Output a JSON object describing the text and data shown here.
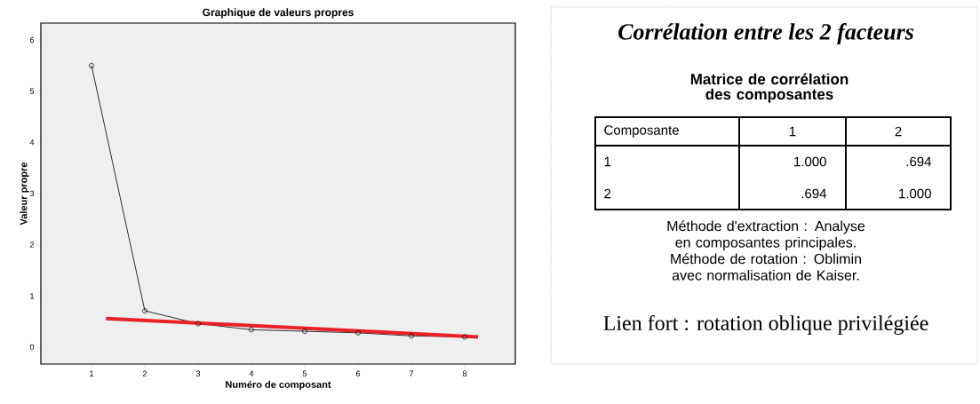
{
  "chart_data": [
    {
      "type": "line",
      "title": "Graphique de valeurs propres",
      "xlabel": "Numéro de composant",
      "ylabel": "Valeur propre",
      "x": [
        1,
        2,
        3,
        4,
        5,
        6,
        7,
        8
      ],
      "marker": "circle",
      "series": [
        {
          "color": "#000000",
          "values": [
            5.5,
            0.71,
            0.46,
            0.34,
            0.31,
            0.28,
            0.22,
            0.2
          ]
        },
        {
          "type": "line",
          "color": "#e8212a",
          "marker": "none",
          "x": [
            1.27,
            8.25
          ],
          "values": [
            0.56,
            0.2
          ]
        }
      ],
      "xlim": [
        0.05,
        8.95
      ],
      "ylim": [
        -0.33,
        6.33
      ],
      "xticks": [
        1,
        2,
        3,
        4,
        5,
        6,
        7,
        8
      ],
      "yticks": [
        0,
        1,
        2,
        3,
        4,
        5,
        6
      ]
    },
    {
      "type": "other",
      "title": "Corrélation entre les 2 facteurs",
      "subtitle": "Matrice de corrélation des composantes",
      "annotations": [
        "Composante",
        "1",
        "2",
        "1",
        "1.000",
        ".694",
        "2",
        ".694",
        "1.000",
        "Méthode d'extraction : Analyse en composantes principales. Méthode de rotation : Oblimin avec normalisation de Kaiser.",
        "Lien fort : rotation oblique privilégiée"
      ]
    }
  ]
}
